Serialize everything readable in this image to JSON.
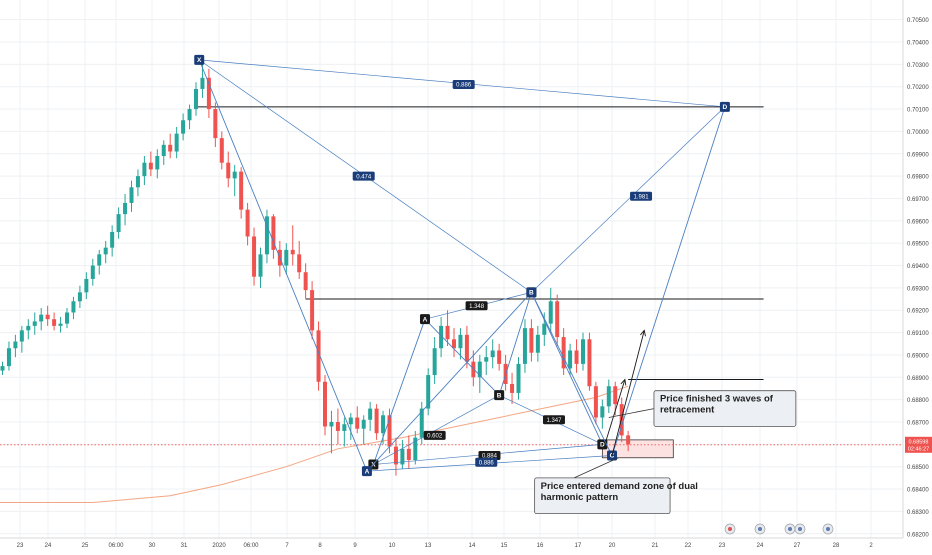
{
  "chart_data": {
    "type": "candlestick",
    "title": "",
    "xlabel": "",
    "ylabel": "",
    "ylim": [
      0.6819,
      0.7057
    ],
    "grid": true,
    "legend": "none",
    "x_tick_labels": [
      "23",
      "24",
      "25",
      "06:00",
      "30",
      "31",
      "2020",
      "06:00",
      "7",
      "8",
      "9",
      "10",
      "13",
      "14",
      "15",
      "16",
      "17",
      "20",
      "21",
      "22",
      "23",
      "24",
      "27",
      "28",
      "2"
    ],
    "y_tick_labels": [
      "0.70500",
      "0.70400",
      "0.70300",
      "0.70200",
      "0.70100",
      "0.70000",
      "0.69900",
      "0.69800",
      "0.69700",
      "0.69600",
      "0.69500",
      "0.69400",
      "0.69300",
      "0.69200",
      "0.69100",
      "0.69000",
      "0.68900",
      "0.68800",
      "0.68700",
      "0.68600",
      "0.68500",
      "0.68400",
      "0.68300",
      "0.68200"
    ],
    "colors": {
      "up": "#26a69a",
      "down": "#ef5350",
      "pattern": "#4a7fc1",
      "marker": "#1a3d7a",
      "ma": "#f4a582",
      "zone_fill": "#fde2e2",
      "zone_border": "#333333",
      "price_badge": "#ef5350"
    },
    "candles": [
      {
        "o": 0.6893,
        "h": 0.6897,
        "l": 0.6891,
        "c": 0.6895
      },
      {
        "o": 0.6895,
        "h": 0.6906,
        "l": 0.6893,
        "c": 0.6903
      },
      {
        "o": 0.6903,
        "h": 0.6909,
        "l": 0.6899,
        "c": 0.6906
      },
      {
        "o": 0.6906,
        "h": 0.6913,
        "l": 0.6901,
        "c": 0.6911
      },
      {
        "o": 0.6911,
        "h": 0.6916,
        "l": 0.6907,
        "c": 0.6913
      },
      {
        "o": 0.6913,
        "h": 0.6919,
        "l": 0.6909,
        "c": 0.6915
      },
      {
        "o": 0.6915,
        "h": 0.6921,
        "l": 0.6911,
        "c": 0.6918
      },
      {
        "o": 0.6918,
        "h": 0.6922,
        "l": 0.6913,
        "c": 0.6916
      },
      {
        "o": 0.6916,
        "h": 0.6919,
        "l": 0.6911,
        "c": 0.6913
      },
      {
        "o": 0.6913,
        "h": 0.6917,
        "l": 0.691,
        "c": 0.6914
      },
      {
        "o": 0.6914,
        "h": 0.6921,
        "l": 0.6912,
        "c": 0.6919
      },
      {
        "o": 0.6919,
        "h": 0.6926,
        "l": 0.6916,
        "c": 0.6924
      },
      {
        "o": 0.6924,
        "h": 0.6931,
        "l": 0.6921,
        "c": 0.6928
      },
      {
        "o": 0.6928,
        "h": 0.6937,
        "l": 0.6925,
        "c": 0.6934
      },
      {
        "o": 0.6934,
        "h": 0.6943,
        "l": 0.6931,
        "c": 0.694
      },
      {
        "o": 0.694,
        "h": 0.6947,
        "l": 0.6936,
        "c": 0.6945
      },
      {
        "o": 0.6945,
        "h": 0.6951,
        "l": 0.6941,
        "c": 0.6948
      },
      {
        "o": 0.6948,
        "h": 0.6958,
        "l": 0.6944,
        "c": 0.6955
      },
      {
        "o": 0.6955,
        "h": 0.6966,
        "l": 0.6952,
        "c": 0.6963
      },
      {
        "o": 0.6963,
        "h": 0.6972,
        "l": 0.6958,
        "c": 0.6968
      },
      {
        "o": 0.6968,
        "h": 0.6978,
        "l": 0.6964,
        "c": 0.6975
      },
      {
        "o": 0.6975,
        "h": 0.6983,
        "l": 0.6971,
        "c": 0.698
      },
      {
        "o": 0.698,
        "h": 0.6989,
        "l": 0.6976,
        "c": 0.6986
      },
      {
        "o": 0.6986,
        "h": 0.6991,
        "l": 0.698,
        "c": 0.6983
      },
      {
        "o": 0.6983,
        "h": 0.6992,
        "l": 0.6979,
        "c": 0.6989
      },
      {
        "o": 0.6989,
        "h": 0.6996,
        "l": 0.6985,
        "c": 0.6994
      },
      {
        "o": 0.6994,
        "h": 0.6999,
        "l": 0.6988,
        "c": 0.6991
      },
      {
        "o": 0.6991,
        "h": 0.7002,
        "l": 0.6988,
        "c": 0.6999
      },
      {
        "o": 0.6999,
        "h": 0.7008,
        "l": 0.6996,
        "c": 0.7005
      },
      {
        "o": 0.7005,
        "h": 0.7012,
        "l": 0.7001,
        "c": 0.701
      },
      {
        "o": 0.701,
        "h": 0.7022,
        "l": 0.7007,
        "c": 0.7019
      },
      {
        "o": 0.7019,
        "h": 0.7034,
        "l": 0.7015,
        "c": 0.7024
      },
      {
        "o": 0.7024,
        "h": 0.7028,
        "l": 0.7006,
        "c": 0.701
      },
      {
        "o": 0.701,
        "h": 0.7013,
        "l": 0.6993,
        "c": 0.6997
      },
      {
        "o": 0.6997,
        "h": 0.7,
        "l": 0.6983,
        "c": 0.6986
      },
      {
        "o": 0.6986,
        "h": 0.6991,
        "l": 0.6975,
        "c": 0.6979
      },
      {
        "o": 0.6979,
        "h": 0.6985,
        "l": 0.6971,
        "c": 0.6982
      },
      {
        "o": 0.6982,
        "h": 0.6984,
        "l": 0.6961,
        "c": 0.6965
      },
      {
        "o": 0.6965,
        "h": 0.6968,
        "l": 0.6949,
        "c": 0.6953
      },
      {
        "o": 0.6953,
        "h": 0.6957,
        "l": 0.6931,
        "c": 0.6935
      },
      {
        "o": 0.6935,
        "h": 0.6948,
        "l": 0.693,
        "c": 0.6945
      },
      {
        "o": 0.6945,
        "h": 0.6965,
        "l": 0.6941,
        "c": 0.6962
      },
      {
        "o": 0.6962,
        "h": 0.6963,
        "l": 0.6943,
        "c": 0.6947
      },
      {
        "o": 0.6947,
        "h": 0.6951,
        "l": 0.6935,
        "c": 0.694
      },
      {
        "o": 0.694,
        "h": 0.695,
        "l": 0.6936,
        "c": 0.6947
      },
      {
        "o": 0.6947,
        "h": 0.6958,
        "l": 0.694,
        "c": 0.6945
      },
      {
        "o": 0.6945,
        "h": 0.6951,
        "l": 0.6934,
        "c": 0.6937
      },
      {
        "o": 0.6937,
        "h": 0.6941,
        "l": 0.6925,
        "c": 0.6929
      },
      {
        "o": 0.6929,
        "h": 0.6933,
        "l": 0.6907,
        "c": 0.6911
      },
      {
        "o": 0.6911,
        "h": 0.6915,
        "l": 0.6884,
        "c": 0.6888
      },
      {
        "o": 0.6888,
        "h": 0.6891,
        "l": 0.6864,
        "c": 0.6868
      },
      {
        "o": 0.6868,
        "h": 0.6875,
        "l": 0.6856,
        "c": 0.687
      },
      {
        "o": 0.687,
        "h": 0.6876,
        "l": 0.686,
        "c": 0.6866
      },
      {
        "o": 0.6866,
        "h": 0.6872,
        "l": 0.6859,
        "c": 0.6869
      },
      {
        "o": 0.6869,
        "h": 0.6874,
        "l": 0.6862,
        "c": 0.6872
      },
      {
        "o": 0.6872,
        "h": 0.6877,
        "l": 0.6865,
        "c": 0.6867
      },
      {
        "o": 0.6867,
        "h": 0.6873,
        "l": 0.686,
        "c": 0.6871
      },
      {
        "o": 0.6871,
        "h": 0.6879,
        "l": 0.6866,
        "c": 0.6876
      },
      {
        "o": 0.6876,
        "h": 0.6878,
        "l": 0.6862,
        "c": 0.6865
      },
      {
        "o": 0.6865,
        "h": 0.6875,
        "l": 0.686,
        "c": 0.6873
      },
      {
        "o": 0.6873,
        "h": 0.6876,
        "l": 0.6856,
        "c": 0.6859
      },
      {
        "o": 0.6859,
        "h": 0.6863,
        "l": 0.6846,
        "c": 0.6851
      },
      {
        "o": 0.6851,
        "h": 0.6862,
        "l": 0.6849,
        "c": 0.6858
      },
      {
        "o": 0.6858,
        "h": 0.6864,
        "l": 0.6849,
        "c": 0.6853
      },
      {
        "o": 0.6853,
        "h": 0.6866,
        "l": 0.6851,
        "c": 0.6863
      },
      {
        "o": 0.6863,
        "h": 0.6879,
        "l": 0.686,
        "c": 0.6876
      },
      {
        "o": 0.6876,
        "h": 0.6894,
        "l": 0.6873,
        "c": 0.6891
      },
      {
        "o": 0.6891,
        "h": 0.6908,
        "l": 0.6887,
        "c": 0.6903
      },
      {
        "o": 0.6903,
        "h": 0.6917,
        "l": 0.6899,
        "c": 0.6913
      },
      {
        "o": 0.6913,
        "h": 0.692,
        "l": 0.6904,
        "c": 0.6907
      },
      {
        "o": 0.6907,
        "h": 0.6912,
        "l": 0.6899,
        "c": 0.6903
      },
      {
        "o": 0.6903,
        "h": 0.6912,
        "l": 0.6898,
        "c": 0.6909
      },
      {
        "o": 0.6909,
        "h": 0.6913,
        "l": 0.6894,
        "c": 0.6897
      },
      {
        "o": 0.6897,
        "h": 0.6902,
        "l": 0.6886,
        "c": 0.689
      },
      {
        "o": 0.689,
        "h": 0.69,
        "l": 0.6883,
        "c": 0.6897
      },
      {
        "o": 0.6897,
        "h": 0.6904,
        "l": 0.6891,
        "c": 0.6899
      },
      {
        "o": 0.6899,
        "h": 0.6907,
        "l": 0.6894,
        "c": 0.6902
      },
      {
        "o": 0.6902,
        "h": 0.6905,
        "l": 0.6893,
        "c": 0.6896
      },
      {
        "o": 0.6896,
        "h": 0.69,
        "l": 0.6884,
        "c": 0.6887
      },
      {
        "o": 0.6887,
        "h": 0.6892,
        "l": 0.6878,
        "c": 0.6883
      },
      {
        "o": 0.6883,
        "h": 0.6899,
        "l": 0.688,
        "c": 0.6896
      },
      {
        "o": 0.6896,
        "h": 0.6916,
        "l": 0.6892,
        "c": 0.6912
      },
      {
        "o": 0.6912,
        "h": 0.6916,
        "l": 0.6897,
        "c": 0.6901
      },
      {
        "o": 0.6901,
        "h": 0.6913,
        "l": 0.6897,
        "c": 0.6909
      },
      {
        "o": 0.6909,
        "h": 0.6919,
        "l": 0.6904,
        "c": 0.6914
      },
      {
        "o": 0.6914,
        "h": 0.693,
        "l": 0.691,
        "c": 0.6924
      },
      {
        "o": 0.6924,
        "h": 0.6927,
        "l": 0.6904,
        "c": 0.6908
      },
      {
        "o": 0.6908,
        "h": 0.6912,
        "l": 0.6891,
        "c": 0.6894
      },
      {
        "o": 0.6894,
        "h": 0.6905,
        "l": 0.6891,
        "c": 0.6902
      },
      {
        "o": 0.6902,
        "h": 0.6907,
        "l": 0.6892,
        "c": 0.6896
      },
      {
        "o": 0.6896,
        "h": 0.691,
        "l": 0.6893,
        "c": 0.6907
      },
      {
        "o": 0.6907,
        "h": 0.691,
        "l": 0.6884,
        "c": 0.6886
      },
      {
        "o": 0.6886,
        "h": 0.6888,
        "l": 0.6869,
        "c": 0.6872
      },
      {
        "o": 0.6872,
        "h": 0.688,
        "l": 0.6867,
        "c": 0.6877
      },
      {
        "o": 0.6877,
        "h": 0.6889,
        "l": 0.6874,
        "c": 0.6886
      },
      {
        "o": 0.6886,
        "h": 0.6888,
        "l": 0.6873,
        "c": 0.6878
      },
      {
        "o": 0.6878,
        "h": 0.6881,
        "l": 0.6861,
        "c": 0.6864
      },
      {
        "o": 0.6864,
        "h": 0.6866,
        "l": 0.6857,
        "c": 0.686
      }
    ],
    "moving_average": [
      {
        "i": -1,
        "v": 0.6834
      },
      {
        "i": 14,
        "v": 0.6834
      },
      {
        "i": 26,
        "v": 0.6837
      },
      {
        "i": 34,
        "v": 0.6842
      },
      {
        "i": 44,
        "v": 0.685
      },
      {
        "i": 52,
        "v": 0.6858
      },
      {
        "i": 62,
        "v": 0.6863
      },
      {
        "i": 72,
        "v": 0.6869
      },
      {
        "i": 82,
        "v": 0.6875
      },
      {
        "i": 92,
        "v": 0.6881
      },
      {
        "i": 97,
        "v": 0.6886
      }
    ],
    "horizontal_lines": [
      {
        "y": 0.6925,
        "i0": 47,
        "i1": 118
      },
      {
        "y": 0.7011,
        "i0": 30,
        "i1": 118
      },
      {
        "y": 0.6889,
        "i0": 97,
        "i1": 118
      }
    ],
    "demand_zone": {
      "i0": 93,
      "i1": 104,
      "y0": 0.6862,
      "y1": 0.6854
    },
    "price_marker": {
      "price": "0.68598",
      "countdown": "02:46:27",
      "y": 0.68598
    },
    "harmonic_large": {
      "points": [
        {
          "label": "X",
          "i": 30.5,
          "y": 0.7032
        },
        {
          "label": "A",
          "i": 56.5,
          "y": 0.6848
        },
        {
          "label": "B",
          "i": 82,
          "y": 0.6928
        },
        {
          "label": "C",
          "i": 94.5,
          "y": 0.6855
        },
        {
          "label": "D",
          "i": 112,
          "y": 0.7011
        }
      ],
      "ratios": [
        {
          "text": "0.474",
          "i": 56,
          "y": 0.698,
          "from": 0,
          "to": 2
        },
        {
          "text": "0.886",
          "i": 71.5,
          "y": 0.7021,
          "from": 0,
          "to": 4
        },
        {
          "text": "1.981",
          "i": 99,
          "y": 0.6971,
          "from": 2,
          "to": 4
        },
        {
          "text": "0.886",
          "i": 75,
          "y": 0.6852,
          "from": 1,
          "to": 3
        }
      ]
    },
    "harmonic_small": {
      "points": [
        {
          "label": "X",
          "i": 57.5,
          "y": 0.6851
        },
        {
          "label": "A",
          "i": 65.5,
          "y": 0.6916
        },
        {
          "label": "B",
          "i": 77,
          "y": 0.6882
        },
        {
          "label": "C",
          "i": 82,
          "y": 0.6928
        },
        {
          "label": "D",
          "i": 93,
          "y": 0.686
        }
      ],
      "ratios": [
        {
          "text": "0.602",
          "i": 67,
          "y": 0.6864,
          "from": 0,
          "to": 2
        },
        {
          "text": "1.348",
          "i": 73.5,
          "y": 0.6922,
          "from": 1,
          "to": 3
        },
        {
          "text": "1.347",
          "i": 85.5,
          "y": 0.6871,
          "from": 2,
          "to": 4
        },
        {
          "text": "0.884",
          "i": 75.5,
          "y": 0.6855,
          "from": 0,
          "to": 4
        }
      ]
    },
    "projection_arrows": [
      {
        "from": {
          "i": 93.5,
          "y": 0.6861
        },
        "to": {
          "i": 96.5,
          "y": 0.6889
        }
      },
      {
        "from": {
          "i": 94.5,
          "y": 0.6855
        },
        "to": {
          "i": 99.5,
          "y": 0.6911
        }
      }
    ],
    "annotations": [
      {
        "text_lines": [
          "Price finished 3 waves of",
          "retracement"
        ],
        "i0": 101,
        "i1": 123,
        "y0": 0.6884,
        "y1": 0.6868,
        "target": {
          "i": 94,
          "y": 0.6872
        }
      },
      {
        "text_lines": [
          "Price entered demand zone of dual",
          "harmonic pattern"
        ],
        "i0": 82.5,
        "i1": 103.5,
        "y0": 0.6845,
        "y1": 0.6829,
        "target": {
          "i": 95.5,
          "y": 0.6854
        }
      }
    ],
    "time_icons": [
      "flag-icon",
      "event-icon",
      "event-icon",
      "event-icon",
      "event-icon"
    ]
  }
}
